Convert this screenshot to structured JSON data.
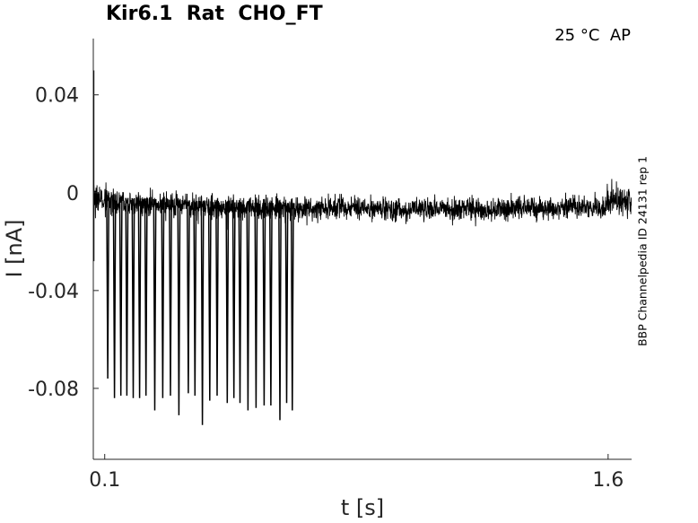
{
  "chart_data": {
    "type": "line",
    "title": "Kir6.1  Rat  CHO_FT",
    "annotation": "25 °C  AP",
    "side_label": "BBP Channelpedia ID 24131 rep 1",
    "xlabel": "t [s]",
    "ylabel": "I [nA]",
    "xlim": [
      0.066,
      1.67
    ],
    "ylim": [
      -0.109,
      0.063
    ],
    "xticks": [
      0.1,
      1.6
    ],
    "xtick_labels": [
      "0.1",
      "1.6"
    ],
    "yticks": [
      0.04,
      0,
      -0.04,
      -0.08
    ],
    "ytick_labels": [
      "0.04",
      "0",
      "-0.04",
      "-0.08"
    ],
    "grid": false,
    "line_color": "#000000",
    "series": [
      {
        "baseline": [
          [
            0.067,
            -0.002
          ],
          [
            0.12,
            -0.002
          ],
          [
            0.14,
            -0.004
          ],
          [
            0.5,
            -0.006
          ],
          [
            1.2,
            -0.007
          ],
          [
            1.58,
            -0.006
          ],
          [
            1.6,
            -0.004
          ],
          [
            1.67,
            -0.003
          ]
        ],
        "noise_amplitude": [
          [
            0.067,
            0.011
          ],
          [
            0.14,
            0.007
          ],
          [
            1.58,
            0.007
          ],
          [
            1.6,
            0.009
          ],
          [
            1.67,
            0.011
          ]
        ],
        "artifacts": [
          [
            0.067,
            0.05
          ],
          [
            0.0672,
            -0.028
          ]
        ],
        "spikes": [
          [
            0.109,
            -0.076
          ],
          [
            0.129,
            -0.084
          ],
          [
            0.148,
            -0.083
          ],
          [
            0.166,
            -0.083
          ],
          [
            0.185,
            -0.084
          ],
          [
            0.204,
            -0.084
          ],
          [
            0.223,
            -0.083
          ],
          [
            0.249,
            -0.089
          ],
          [
            0.273,
            -0.084
          ],
          [
            0.296,
            -0.083
          ],
          [
            0.321,
            -0.091
          ],
          [
            0.349,
            -0.082
          ],
          [
            0.369,
            -0.083
          ],
          [
            0.391,
            -0.095
          ],
          [
            0.413,
            -0.085
          ],
          [
            0.435,
            -0.083
          ],
          [
            0.465,
            -0.086
          ],
          [
            0.485,
            -0.084
          ],
          [
            0.503,
            -0.086
          ],
          [
            0.527,
            -0.089
          ],
          [
            0.551,
            -0.088
          ],
          [
            0.575,
            -0.087
          ],
          [
            0.595,
            -0.087
          ],
          [
            0.622,
            -0.093
          ],
          [
            0.642,
            -0.086
          ],
          [
            0.659,
            -0.089
          ]
        ]
      }
    ]
  }
}
